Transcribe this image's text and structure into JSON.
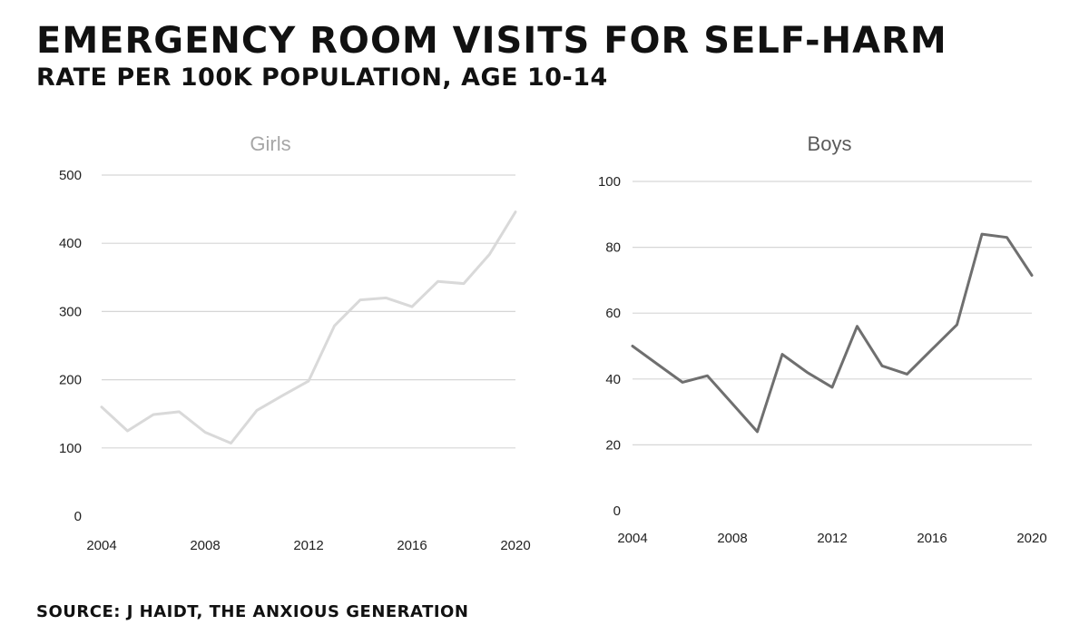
{
  "header": {
    "title": "Emergency room visits for self-harm",
    "subtitle": "Rate per 100k population, age 10-14"
  },
  "footer": {
    "source": "Source: J Haidt, The Anxious Generation"
  },
  "colors": {
    "girls_line": "#d9d9d9",
    "boys_line": "#6f6f6f",
    "grid": "#d6d6d6",
    "girls_title": "#a6a6a6",
    "boys_title": "#5a5a5a"
  },
  "chart_data": [
    {
      "type": "line",
      "title": "Girls",
      "xlabel": "",
      "ylabel": "",
      "xlim": [
        2004,
        2020
      ],
      "ylim": [
        0,
        500
      ],
      "yticks": [
        0,
        100,
        200,
        300,
        400,
        500
      ],
      "xticks": [
        2004,
        2008,
        2012,
        2016,
        2020
      ],
      "series": [
        {
          "name": "Girls",
          "x": [
            2004,
            2005,
            2006,
            2007,
            2008,
            2009,
            2010,
            2011,
            2012,
            2013,
            2014,
            2015,
            2016,
            2017,
            2018,
            2019,
            2020
          ],
          "values": [
            160,
            125,
            149,
            153,
            123,
            107,
            155,
            177,
            198,
            279,
            317,
            320,
            307,
            344,
            341,
            384,
            446
          ]
        }
      ],
      "grid": true
    },
    {
      "type": "line",
      "title": "Boys",
      "xlabel": "",
      "ylabel": "",
      "xlim": [
        2004,
        2020
      ],
      "ylim": [
        0,
        100
      ],
      "yticks": [
        0,
        20,
        40,
        60,
        80,
        100
      ],
      "xticks": [
        2004,
        2008,
        2012,
        2016,
        2020
      ],
      "series": [
        {
          "name": "Boys",
          "x": [
            2004,
            2005,
            2006,
            2007,
            2008,
            2009,
            2010,
            2011,
            2012,
            2013,
            2014,
            2015,
            2016,
            2017,
            2018,
            2019,
            2020
          ],
          "values": [
            50,
            44.5,
            39,
            41,
            32.5,
            24,
            47.5,
            42,
            37.5,
            56,
            44,
            41.5,
            49,
            56.5,
            84,
            83,
            71.5
          ]
        }
      ],
      "grid": true
    }
  ]
}
